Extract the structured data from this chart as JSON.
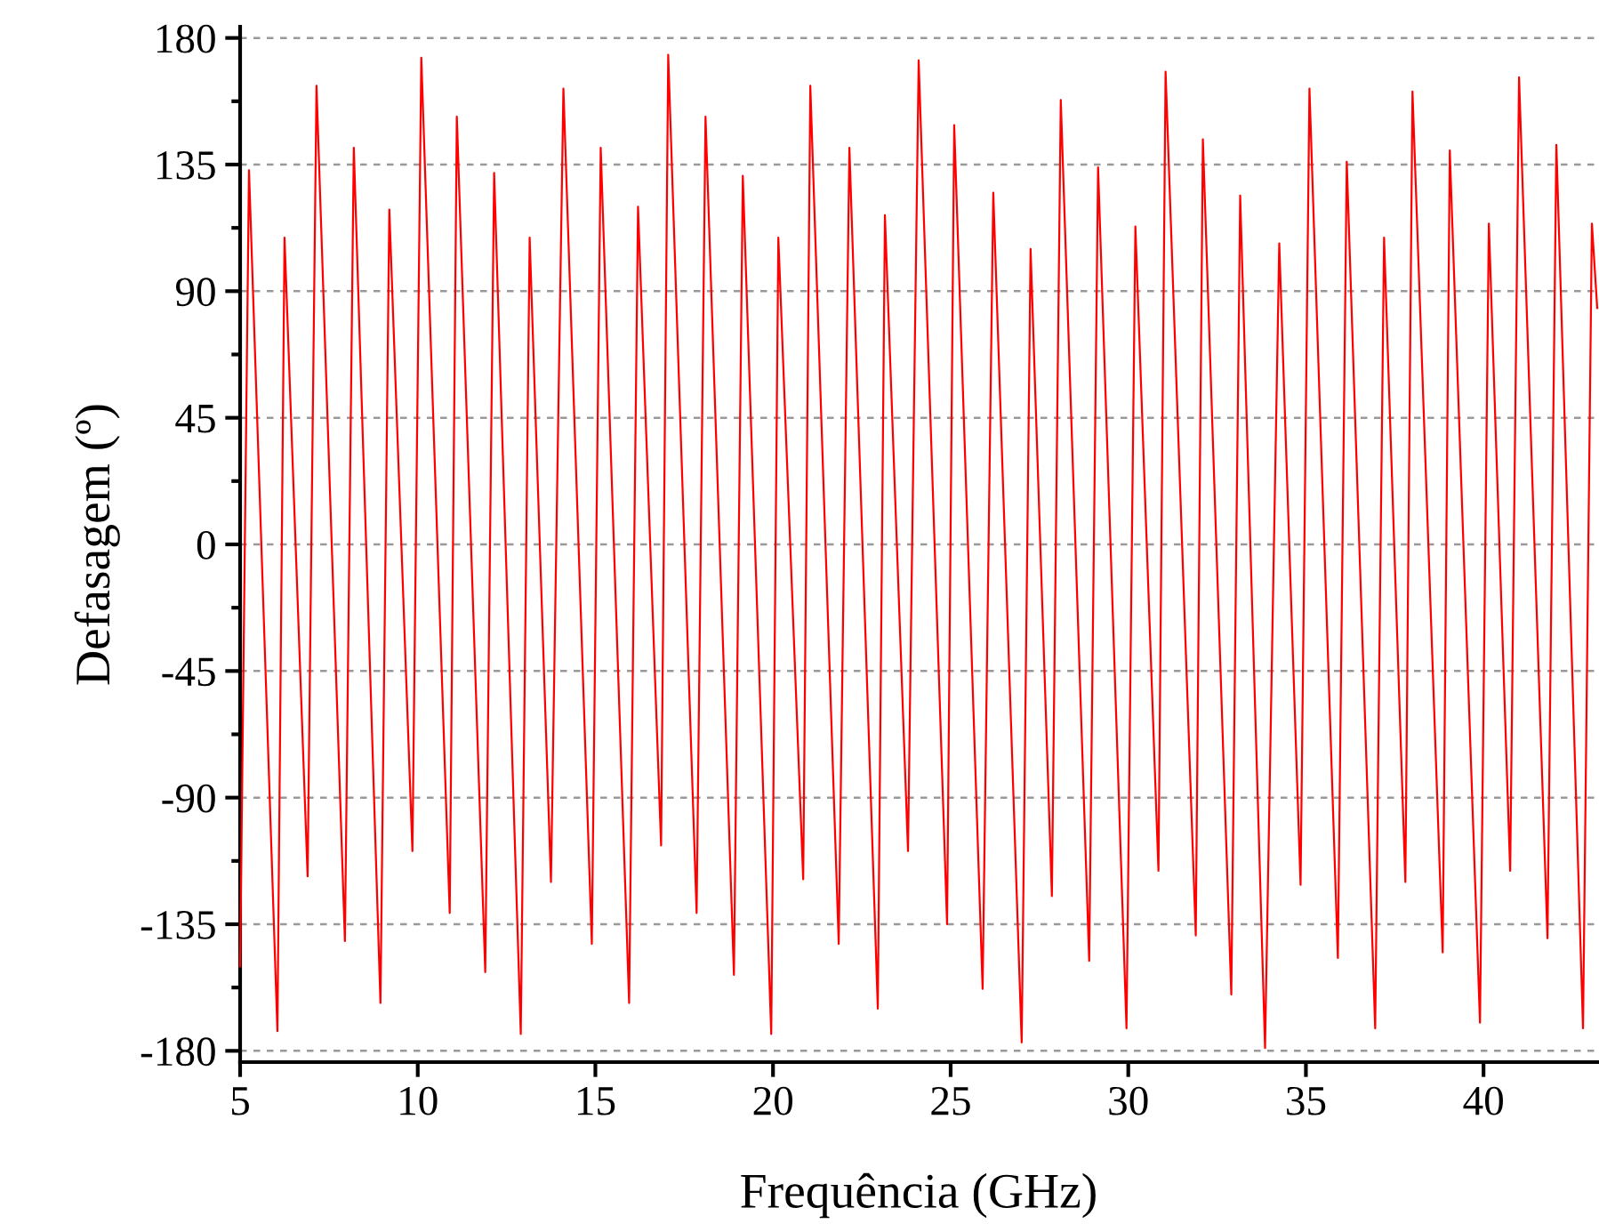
{
  "chart_data": {
    "type": "line",
    "xlabel": "Frequência (GHz)",
    "ylabel": "Defasagem (º)",
    "x": [
      5.0,
      5.25,
      6.05,
      6.25,
      6.9,
      7.15,
      7.95,
      8.2,
      8.95,
      9.2,
      9.85,
      10.1,
      10.9,
      11.1,
      11.9,
      12.15,
      12.9,
      13.15,
      13.75,
      14.1,
      14.9,
      15.15,
      15.95,
      16.2,
      16.85,
      17.05,
      17.85,
      18.1,
      18.9,
      19.15,
      19.95,
      20.15,
      20.85,
      21.05,
      21.85,
      22.15,
      22.95,
      23.15,
      23.8,
      24.1,
      24.9,
      25.1,
      25.9,
      26.2,
      27.0,
      27.25,
      27.85,
      28.1,
      28.9,
      29.15,
      29.95,
      30.2,
      30.85,
      31.05,
      31.9,
      32.1,
      32.9,
      33.15,
      33.85,
      34.25,
      34.85,
      35.1,
      35.9,
      36.15,
      36.95,
      37.2,
      37.8,
      38.0,
      38.85,
      39.05,
      39.9,
      40.15,
      40.75,
      41.0,
      41.8,
      42.05,
      42.8,
      43.05,
      43.2
    ],
    "series": [
      {
        "color": "#ff0000",
        "values": [
          -150,
          133,
          -173,
          109,
          -118,
          163,
          -141,
          141,
          -163,
          119,
          -109,
          173,
          -131,
          152,
          -152,
          132,
          -174,
          109,
          -120,
          162,
          -142,
          141,
          -163,
          120,
          -107,
          174,
          -131,
          152,
          -153,
          131,
          -174,
          109,
          -119,
          163,
          -142,
          141,
          -165,
          117,
          -109,
          172,
          -135,
          149,
          -158,
          125,
          -177,
          105,
          -125,
          158,
          -148,
          134,
          -172,
          113,
          -116,
          168,
          -139,
          144,
          -160,
          124,
          -179,
          107,
          -121,
          162,
          -147,
          136,
          -172,
          109,
          -120,
          161,
          -145,
          140,
          -170,
          114,
          -116,
          166,
          -140,
          142,
          -172,
          114,
          84
        ]
      }
    ],
    "xlim": [
      5,
      43.2
    ],
    "xticks": [
      5,
      10,
      15,
      20,
      25,
      30,
      35,
      40
    ],
    "ylim": [
      -184,
      184
    ],
    "yticks": [
      -180,
      {
        "value": -157.5,
        "label": null
      },
      -135,
      {
        "value": -112.5,
        "label": null
      },
      -90,
      {
        "value": -67.5,
        "label": null
      },
      -45,
      {
        "value": -22.5,
        "label": null
      },
      0,
      {
        "value": 22.5,
        "label": null
      },
      45,
      {
        "value": 67.5,
        "label": null
      },
      90,
      {
        "value": 112.5,
        "label": null
      },
      135,
      {
        "value": 157.5,
        "label": null
      },
      180
    ],
    "grid": "y",
    "line_style": "solid",
    "marker": "none"
  }
}
